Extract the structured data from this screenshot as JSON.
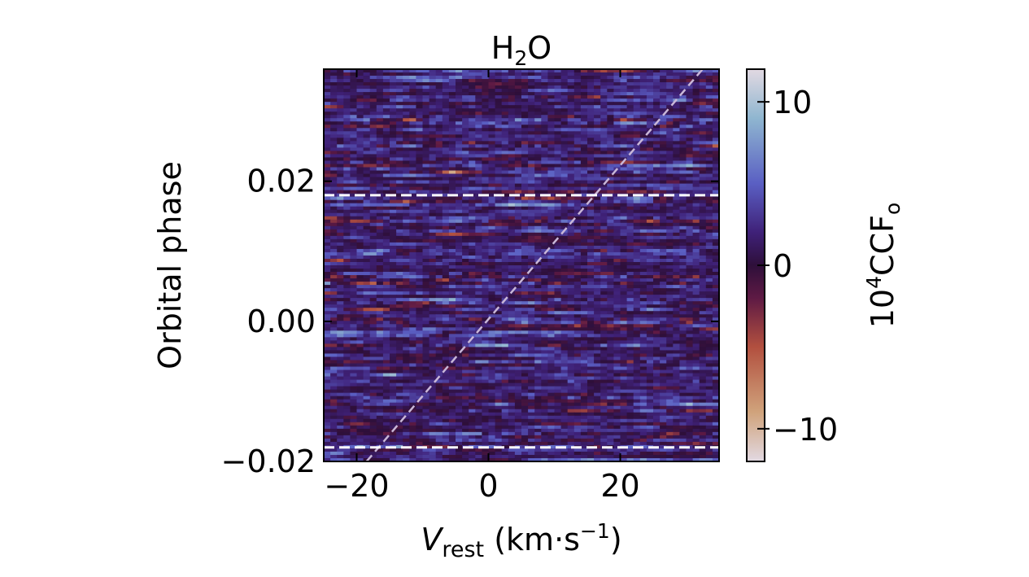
{
  "chart_data": {
    "type": "heatmap",
    "title": {
      "base": "H",
      "sub": "2",
      "rest": "O"
    },
    "xlabel": {
      "italic": "V",
      "sub": "rest",
      "rest": " (km·s",
      "sup": "−1",
      "close": ")"
    },
    "ylabel": "Orbital phase",
    "colorbar_label": {
      "base": "10",
      "sup": "4",
      "rest": "CCF",
      "sub": "o"
    },
    "xlim": [
      -25,
      35
    ],
    "ylim": [
      -0.02,
      0.036
    ],
    "x_ticks": [
      -20,
      0,
      20
    ],
    "x_tick_labels": [
      "−20",
      "0",
      "20"
    ],
    "y_ticks": [
      -0.02,
      0.0,
      0.02
    ],
    "y_tick_labels": [
      "−0.02",
      "0.00",
      "0.02"
    ],
    "color_range": [
      -12,
      12
    ],
    "colorbar_ticks": [
      10,
      0,
      -10
    ],
    "colorbar_tick_labels": [
      "10",
      "0",
      "−10"
    ],
    "colormap": "twilight_shifted",
    "colormap_stops": [
      {
        "v": -12,
        "color": "#e2d9e2"
      },
      {
        "v": -9,
        "color": "#d0a37c"
      },
      {
        "v": -5,
        "color": "#b2503f"
      },
      {
        "v": -2,
        "color": "#5e1a44"
      },
      {
        "v": 0,
        "color": "#2e0f3a"
      },
      {
        "v": 2,
        "color": "#3f2178"
      },
      {
        "v": 5,
        "color": "#5a5fc3"
      },
      {
        "v": 9,
        "color": "#8fb6d0"
      },
      {
        "v": 12,
        "color": "#e2d9e2"
      }
    ],
    "transit_boundaries": [
      -0.018,
      0.018
    ],
    "planet_trace": {
      "x": [
        -18.5,
        32.5
      ],
      "y": [
        -0.02,
        0.036
      ]
    },
    "grid": false,
    "legend": "none"
  }
}
